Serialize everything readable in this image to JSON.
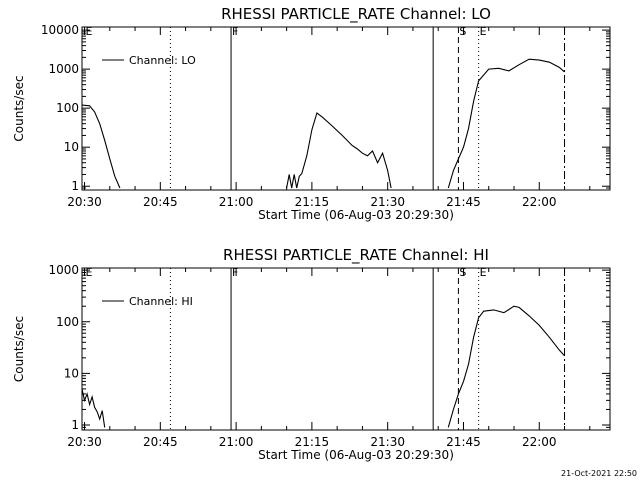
{
  "footer": {
    "timestamp": "21-Oct-2021 22:50"
  },
  "chart_data": [
    {
      "type": "line",
      "title": "RHESSI PARTICLE_RATE Channel: LO",
      "xlabel": "Start Time (06-Aug-03 20:29:30)",
      "ylabel": "Counts/sec",
      "yscale": "log",
      "xlim": [
        "20:29:30",
        "22:14:00"
      ],
      "ylim": [
        0.8,
        12000
      ],
      "xticks": [
        "20:30",
        "20:45",
        "21:00",
        "21:15",
        "21:30",
        "21:45",
        "22:00"
      ],
      "yticks": [
        "1",
        "10",
        "100",
        "1000",
        "10000"
      ],
      "legend": {
        "position": "top-left",
        "entries": [
          "Channel: LO"
        ]
      },
      "markers": [
        {
          "time": "20:30",
          "style": "none",
          "label": "E"
        },
        {
          "time": "20:47",
          "style": "dotted",
          "label": ""
        },
        {
          "time": "20:59",
          "style": "solid",
          "label": "F"
        },
        {
          "time": "21:39",
          "style": "solid",
          "label": ""
        },
        {
          "time": "21:44",
          "style": "dashed",
          "label": "S"
        },
        {
          "time": "21:48",
          "style": "dotted",
          "label": "E"
        },
        {
          "time": "22:05",
          "style": "dashdot",
          "label": ""
        }
      ],
      "series": [
        {
          "name": "Channel: LO",
          "segments": [
            [
              [
                "20:29:30",
                120
              ],
              [
                "20:31:00",
                115
              ],
              [
                "20:32:00",
                80
              ],
              [
                "20:33:00",
                40
              ],
              [
                "20:34:00",
                15
              ],
              [
                "20:35:00",
                5
              ],
              [
                "20:36:00",
                1.8
              ],
              [
                "20:37:00",
                0.9
              ]
            ],
            [
              [
                "21:10:00",
                0.9
              ],
              [
                "21:10:30",
                2.0
              ],
              [
                "21:11:00",
                0.9
              ],
              [
                "21:11:30",
                2.0
              ],
              [
                "21:12:00",
                0.9
              ],
              [
                "21:12:30",
                1.8
              ],
              [
                "21:13:00",
                2.1
              ],
              [
                "21:14:00",
                6
              ],
              [
                "21:15:00",
                28
              ],
              [
                "21:16:00",
                75
              ],
              [
                "21:17:00",
                60
              ],
              [
                "21:19:00",
                35
              ],
              [
                "21:21:00",
                20
              ],
              [
                "21:23:00",
                11
              ],
              [
                "21:24:00",
                9
              ],
              [
                "21:25:00",
                7
              ],
              [
                "21:26:00",
                6
              ],
              [
                "21:27:00",
                8
              ],
              [
                "21:28:00",
                4
              ],
              [
                "21:29:00",
                7
              ],
              [
                "21:30:00",
                2.5
              ],
              [
                "21:30:40",
                0.9
              ]
            ],
            [
              [
                "21:42:00",
                0.9
              ],
              [
                "21:43:00",
                2.5
              ],
              [
                "21:44:00",
                5
              ],
              [
                "21:45:00",
                10
              ],
              [
                "21:46:00",
                30
              ],
              [
                "21:47:00",
                150
              ],
              [
                "21:48:00",
                500
              ],
              [
                "21:50:00",
                1000
              ],
              [
                "21:52:00",
                1050
              ],
              [
                "21:54:00",
                900
              ],
              [
                "21:56:00",
                1300
              ],
              [
                "21:58:00",
                1800
              ],
              [
                "22:00:00",
                1700
              ],
              [
                "22:02:00",
                1500
              ],
              [
                "22:04:00",
                1100
              ],
              [
                "22:05:00",
                850
              ]
            ]
          ]
        }
      ]
    },
    {
      "type": "line",
      "title": "RHESSI PARTICLE_RATE Channel: HI",
      "xlabel": "Start Time (06-Aug-03 20:29:30)",
      "ylabel": "Counts/sec",
      "yscale": "log",
      "xlim": [
        "20:29:30",
        "22:14:00"
      ],
      "ylim": [
        0.8,
        1100
      ],
      "xticks": [
        "20:30",
        "20:45",
        "21:00",
        "21:15",
        "21:30",
        "21:45",
        "22:00"
      ],
      "yticks": [
        "1",
        "10",
        "100",
        "1000"
      ],
      "legend": {
        "position": "top-left",
        "entries": [
          "Channel: HI"
        ]
      },
      "markers": [
        {
          "time": "20:30",
          "style": "none",
          "label": "E"
        },
        {
          "time": "20:47",
          "style": "dotted",
          "label": ""
        },
        {
          "time": "20:59",
          "style": "solid",
          "label": "F"
        },
        {
          "time": "21:39",
          "style": "solid",
          "label": ""
        },
        {
          "time": "21:44",
          "style": "dashed",
          "label": "S"
        },
        {
          "time": "21:48",
          "style": "dotted",
          "label": "E"
        },
        {
          "time": "22:05",
          "style": "dashdot",
          "label": ""
        }
      ],
      "series": [
        {
          "name": "Channel: HI",
          "segments": [
            [
              [
                "20:29:30",
                5
              ],
              [
                "20:30:00",
                3
              ],
              [
                "20:30:30",
                4
              ],
              [
                "20:31:00",
                2.5
              ],
              [
                "20:31:30",
                3.5
              ],
              [
                "20:32:00",
                2.2
              ],
              [
                "20:32:30",
                1.8
              ],
              [
                "20:33:00",
                1.3
              ],
              [
                "20:33:30",
                1.9
              ],
              [
                "20:34:00",
                0.9
              ]
            ],
            [
              [
                "21:42:00",
                0.9
              ],
              [
                "21:43:00",
                2
              ],
              [
                "21:44:00",
                4
              ],
              [
                "21:45:00",
                7
              ],
              [
                "21:46:00",
                15
              ],
              [
                "21:47:00",
                50
              ],
              [
                "21:48:00",
                120
              ],
              [
                "21:49:00",
                160
              ],
              [
                "21:51:00",
                170
              ],
              [
                "21:53:00",
                150
              ],
              [
                "21:55:00",
                200
              ],
              [
                "21:56:00",
                190
              ],
              [
                "21:58:00",
                130
              ],
              [
                "22:00:00",
                85
              ],
              [
                "22:02:00",
                50
              ],
              [
                "22:04:00",
                28
              ],
              [
                "22:05:00",
                22
              ]
            ]
          ]
        }
      ]
    }
  ]
}
